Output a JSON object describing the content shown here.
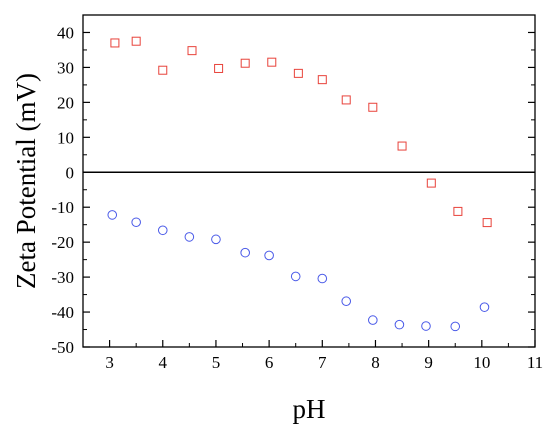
{
  "chart_data": {
    "type": "scatter",
    "title": "",
    "xlabel": "pH",
    "ylabel": "Zeta Potential (mV)",
    "xlim": [
      2.5,
      11
    ],
    "ylim": [
      -50,
      45
    ],
    "x_ticks": [
      3,
      4,
      5,
      6,
      7,
      8,
      9,
      10,
      11
    ],
    "y_ticks": [
      40,
      30,
      20,
      10,
      0,
      -10,
      -20,
      -30,
      -40,
      -50
    ],
    "grid": false,
    "legend": null,
    "zero_line": true,
    "series": [
      {
        "marker": "square",
        "color": "#e8423a",
        "x": [
          3.1,
          3.5,
          4.0,
          4.55,
          5.05,
          5.55,
          6.05,
          6.55,
          7.0,
          7.45,
          7.95,
          8.5,
          9.05,
          9.55,
          10.1
        ],
        "y": [
          37.0,
          37.5,
          29.2,
          34.8,
          29.7,
          31.2,
          31.5,
          28.3,
          26.5,
          20.7,
          18.6,
          7.5,
          -3.1,
          -11.2,
          -14.4
        ]
      },
      {
        "marker": "circle",
        "color": "#4a5ae8",
        "x": [
          3.05,
          3.5,
          4.0,
          4.5,
          5.0,
          5.55,
          6.0,
          6.5,
          7.0,
          7.45,
          7.95,
          8.45,
          8.95,
          9.5,
          10.05
        ],
        "y": [
          -12.2,
          -14.3,
          -16.6,
          -18.5,
          -19.2,
          -23.0,
          -23.8,
          -29.8,
          -30.4,
          -36.9,
          -42.3,
          -43.6,
          -44.0,
          -44.1,
          -38.6
        ]
      }
    ]
  }
}
